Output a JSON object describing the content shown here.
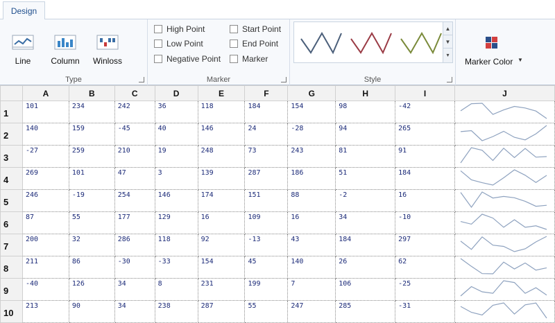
{
  "tabs": {
    "active": "Design"
  },
  "ribbon": {
    "type_group": {
      "label": "Type",
      "line": "Line",
      "column": "Column",
      "winloss": "Winloss"
    },
    "marker_group": {
      "label": "Marker",
      "high_point": "High Point",
      "low_point": "Low Point",
      "negative_point": "Negative Point",
      "start_point": "Start Point",
      "end_point": "End Point",
      "marker": "Marker"
    },
    "style_group": {
      "label": "Style",
      "styles": [
        "#4b5f7a",
        "#9a3b45",
        "#7a8a3a"
      ]
    },
    "marker_color": {
      "label": "Marker Color"
    }
  },
  "columns": [
    "A",
    "B",
    "C",
    "D",
    "E",
    "F",
    "G",
    "H",
    "I",
    "J"
  ],
  "rows": [
    {
      "num": "1",
      "cells": [
        "101",
        "234",
        "242",
        "36",
        "118",
        "184",
        "154",
        "98",
        "-42"
      ]
    },
    {
      "num": "2",
      "cells": [
        "140",
        "159",
        "-45",
        "40",
        "146",
        "24",
        "-28",
        "94",
        "265"
      ]
    },
    {
      "num": "3",
      "cells": [
        "-27",
        "259",
        "210",
        "19",
        "248",
        "73",
        "243",
        "81",
        "91"
      ]
    },
    {
      "num": "4",
      "cells": [
        "269",
        "101",
        "47",
        "3",
        "139",
        "287",
        "186",
        "51",
        "184"
      ]
    },
    {
      "num": "5",
      "cells": [
        "246",
        "-19",
        "254",
        "146",
        "174",
        "151",
        "88",
        "-2",
        "16"
      ]
    },
    {
      "num": "6",
      "cells": [
        "87",
        "55",
        "177",
        "129",
        "16",
        "109",
        "16",
        "34",
        "-10"
      ]
    },
    {
      "num": "7",
      "cells": [
        "200",
        "32",
        "286",
        "118",
        "92",
        "-13",
        "43",
        "184",
        "297"
      ]
    },
    {
      "num": "8",
      "cells": [
        "211",
        "86",
        "-30",
        "-33",
        "154",
        "45",
        "140",
        "26",
        "62"
      ]
    },
    {
      "num": "9",
      "cells": [
        "-40",
        "126",
        "34",
        "8",
        "231",
        "199",
        "7",
        "106",
        "-25"
      ]
    },
    {
      "num": "10",
      "cells": [
        "213",
        "90",
        "34",
        "238",
        "287",
        "55",
        "247",
        "285",
        "-31"
      ]
    }
  ],
  "sparkline_color": "#8ea2bf"
}
